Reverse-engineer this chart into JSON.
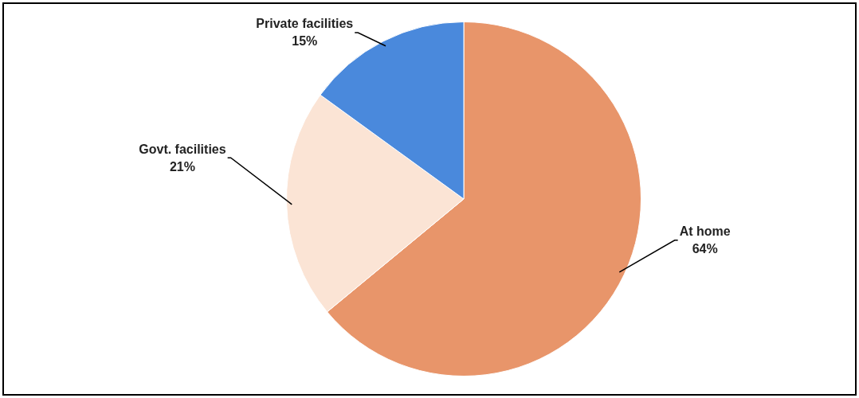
{
  "chart_data": {
    "type": "pie",
    "categories": [
      "At home",
      "Govt. facilities",
      "Private facilities"
    ],
    "values": [
      64,
      21,
      15
    ],
    "value_labels": [
      "64%",
      "21%",
      "15%"
    ],
    "colors": [
      "#e8956a",
      "#fbe4d5",
      "#4a89dc"
    ],
    "legend": false
  }
}
